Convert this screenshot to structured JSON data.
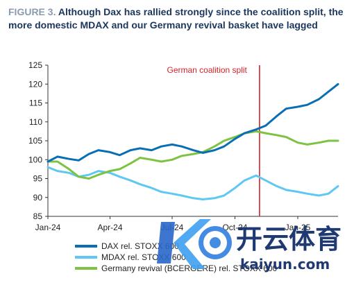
{
  "title": {
    "figure_label": "FIGURE 3.",
    "text": "Although Dax has rallied strongly since the coalition split, the more domestic MDAX and our Germany revival basket have lagged"
  },
  "watermark": {
    "main": "开云体育",
    "sub": "kaiyun.com"
  },
  "colors": {
    "dax": "#0a6eb4",
    "mdax": "#5ec8f2",
    "revival": "#7dc242",
    "split": "#d9202a",
    "axis": "#333333"
  },
  "chart_data": {
    "type": "line",
    "title": "",
    "xlabel": "",
    "ylabel": "",
    "x_tick_labels": [
      "Jan-24",
      "Apr-24",
      "Jul-24",
      "Oct-24",
      "Jan-25"
    ],
    "x_range": [
      "2024-01-01",
      "2025-03-01"
    ],
    "ylim": [
      85,
      125
    ],
    "y_ticks": [
      85,
      90,
      95,
      100,
      105,
      110,
      115,
      120,
      125
    ],
    "grid": false,
    "legend_position": "bottom-left",
    "annotations": [
      {
        "text": "German coalition split",
        "date": "2024-11-06"
      }
    ],
    "series": [
      {
        "name": "DAX rel. STOXX 600",
        "points": [
          [
            "2024-01-01",
            99.5
          ],
          [
            "2024-01-15",
            100.8
          ],
          [
            "2024-02-01",
            100.2
          ],
          [
            "2024-02-15",
            99.8
          ],
          [
            "2024-03-01",
            101.5
          ],
          [
            "2024-03-15",
            102.5
          ],
          [
            "2024-04-01",
            102.0
          ],
          [
            "2024-04-15",
            101.2
          ],
          [
            "2024-05-01",
            102.5
          ],
          [
            "2024-05-15",
            103.0
          ],
          [
            "2024-06-01",
            102.5
          ],
          [
            "2024-06-15",
            103.5
          ],
          [
            "2024-07-01",
            104.0
          ],
          [
            "2024-07-15",
            103.5
          ],
          [
            "2024-08-01",
            102.5
          ],
          [
            "2024-08-15",
            101.8
          ],
          [
            "2024-09-01",
            102.5
          ],
          [
            "2024-09-15",
            103.5
          ],
          [
            "2024-10-01",
            105.5
          ],
          [
            "2024-10-15",
            107.0
          ],
          [
            "2024-11-01",
            108.0
          ],
          [
            "2024-11-15",
            109.0
          ],
          [
            "2024-12-01",
            111.5
          ],
          [
            "2024-12-15",
            113.5
          ],
          [
            "2025-01-01",
            114.0
          ],
          [
            "2025-01-15",
            114.5
          ],
          [
            "2025-02-01",
            116.0
          ],
          [
            "2025-02-15",
            118.0
          ],
          [
            "2025-03-01",
            120.0
          ]
        ]
      },
      {
        "name": "MDAX rel. STOXX 600",
        "points": [
          [
            "2024-01-01",
            98.0
          ],
          [
            "2024-01-15",
            97.0
          ],
          [
            "2024-02-01",
            96.5
          ],
          [
            "2024-02-15",
            95.5
          ],
          [
            "2024-03-01",
            96.0
          ],
          [
            "2024-03-15",
            97.0
          ],
          [
            "2024-04-01",
            96.5
          ],
          [
            "2024-04-15",
            95.5
          ],
          [
            "2024-05-01",
            94.5
          ],
          [
            "2024-05-15",
            93.5
          ],
          [
            "2024-06-01",
            92.5
          ],
          [
            "2024-06-15",
            91.5
          ],
          [
            "2024-07-01",
            91.0
          ],
          [
            "2024-07-15",
            90.5
          ],
          [
            "2024-08-01",
            89.8
          ],
          [
            "2024-08-15",
            89.5
          ],
          [
            "2024-09-01",
            89.8
          ],
          [
            "2024-09-15",
            90.5
          ],
          [
            "2024-10-01",
            92.5
          ],
          [
            "2024-10-15",
            94.5
          ],
          [
            "2024-11-01",
            95.8
          ],
          [
            "2024-11-15",
            94.5
          ],
          [
            "2024-12-01",
            93.0
          ],
          [
            "2024-12-15",
            92.0
          ],
          [
            "2025-01-01",
            91.5
          ],
          [
            "2025-01-15",
            91.0
          ],
          [
            "2025-02-01",
            90.5
          ],
          [
            "2025-02-15",
            91.0
          ],
          [
            "2025-03-01",
            93.0
          ]
        ]
      },
      {
        "name": "Germany revival (BCERGERE) rel. STOXX 600",
        "points": [
          [
            "2024-01-01",
            99.5
          ],
          [
            "2024-01-15",
            99.5
          ],
          [
            "2024-02-01",
            97.5
          ],
          [
            "2024-02-15",
            95.5
          ],
          [
            "2024-03-01",
            95.0
          ],
          [
            "2024-03-15",
            96.0
          ],
          [
            "2024-04-01",
            97.0
          ],
          [
            "2024-04-15",
            97.5
          ],
          [
            "2024-05-01",
            99.0
          ],
          [
            "2024-05-15",
            100.5
          ],
          [
            "2024-06-01",
            100.0
          ],
          [
            "2024-06-15",
            99.5
          ],
          [
            "2024-07-01",
            100.0
          ],
          [
            "2024-07-15",
            101.0
          ],
          [
            "2024-08-01",
            101.5
          ],
          [
            "2024-08-15",
            102.0
          ],
          [
            "2024-09-01",
            103.5
          ],
          [
            "2024-09-15",
            105.0
          ],
          [
            "2024-10-01",
            106.0
          ],
          [
            "2024-10-15",
            107.0
          ],
          [
            "2024-11-01",
            107.5
          ],
          [
            "2024-11-15",
            107.0
          ],
          [
            "2024-12-01",
            106.5
          ],
          [
            "2024-12-15",
            106.0
          ],
          [
            "2025-01-01",
            104.5
          ],
          [
            "2025-01-15",
            104.0
          ],
          [
            "2025-02-01",
            104.5
          ],
          [
            "2025-02-15",
            105.0
          ],
          [
            "2025-03-01",
            105.0
          ]
        ]
      }
    ]
  }
}
